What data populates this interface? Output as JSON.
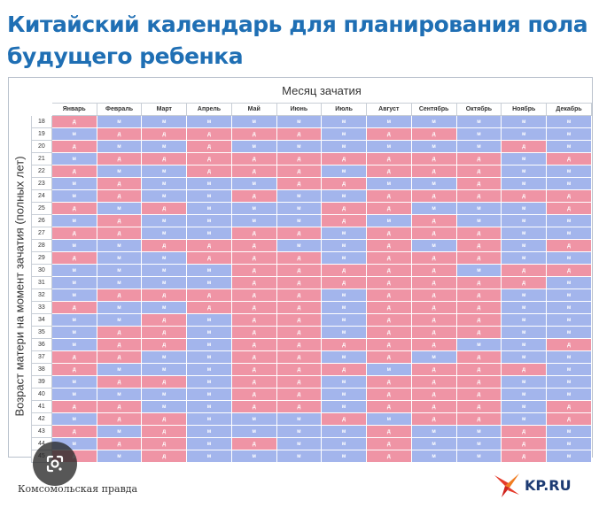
{
  "title": "Китайский календарь для планирования пола будущего ребенка",
  "chart": {
    "month_axis_title": "Месяц зачатия",
    "age_axis_title": "Возраст матери на момент зачатия (полных лет)",
    "months": [
      "Январь",
      "Февраль",
      "Март",
      "Апрель",
      "Май",
      "Июнь",
      "Июль",
      "Август",
      "Сентябрь",
      "Октябрь",
      "Ноябрь",
      "Декабрь"
    ],
    "ages": [
      "18",
      "19",
      "20",
      "21",
      "22",
      "23",
      "24",
      "25",
      "26",
      "27",
      "28",
      "29",
      "30",
      "31",
      "32",
      "33",
      "34",
      "35",
      "36",
      "37",
      "38",
      "39",
      "40",
      "41",
      "42",
      "43",
      "44",
      "45"
    ],
    "legend": {
      "m": "м",
      "d": "д"
    },
    "cell_colors": {
      "m": "#a3b5ec",
      "d": "#ef94a5"
    },
    "rows": [
      "дмммммммммм м",
      "мдддддмддммм",
      "дммдммммммдм",
      "мдддддддддмд",
      "дммдддмдддмм",
      "мдмммддммдмм",
      "мдммдммддддд",
      "дмдмммддмммд",
      "мдммммдмдммм",
      "ддммддмдддмм",
      "ммдддммдмдмд",
      "дммдддмдддмм",
      "ммммдддддмдд",
      "ммммдддддддм",
      "мдддддмдддмм",
      "дммдддмдддмм",
      "ммдмддмдддмм",
      "мддмддмдддмм",
      "мддмдддддммд",
      "ддммддмдмдмм",
      "дмммдддмдддм",
      "мддмддмдддмм",
      "ммммддмдддмм",
      "ддммддмдддмд",
      "мддмммдмддмд",
      "дмдммммдммдм",
      "мддмдммдммдм",
      "дмдммммдммдм"
    ]
  },
  "footer": {
    "source": "Комсомольская правда",
    "logo_text": "KP.RU"
  },
  "icons": {
    "lens": "google-lens-icon",
    "logo_mark": "kp-star-icon"
  }
}
